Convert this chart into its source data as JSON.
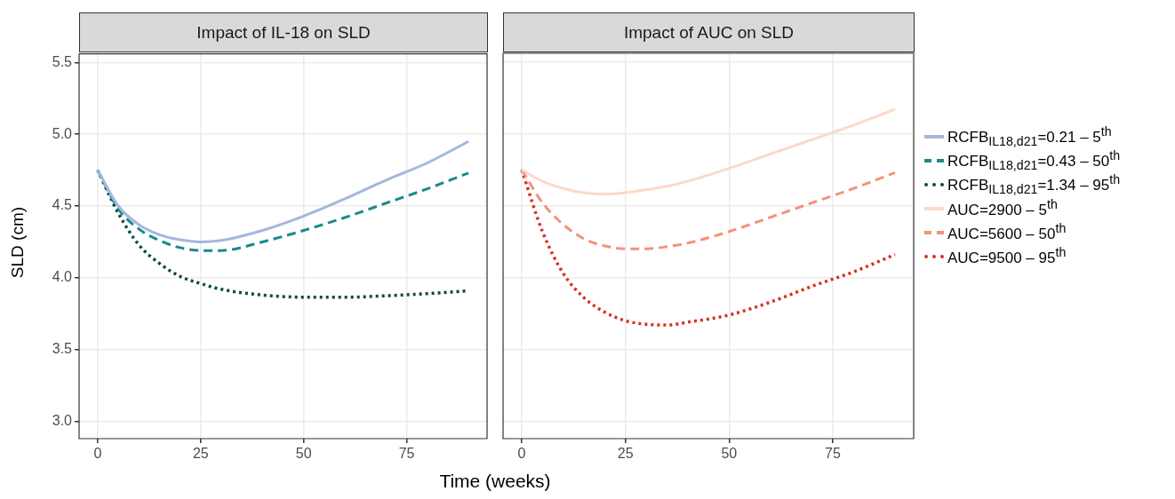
{
  "chart_data": [
    {
      "type": "line",
      "title": "Impact of IL-18 on SLD",
      "xlabel": "Time (weeks)",
      "ylabel": "SLD (cm)",
      "x": [
        0,
        5,
        10,
        15,
        20,
        25,
        30,
        40,
        50,
        60,
        70,
        80,
        90
      ],
      "series": [
        {
          "name": "RCFB$_{IL18,d21}$=0.21 – 5$^{th}$",
          "color": "#a4b8dc",
          "line_style": "solid",
          "values": [
            4.75,
            4.5,
            4.37,
            4.3,
            4.265,
            4.25,
            4.26,
            4.33,
            4.43,
            4.55,
            4.68,
            4.8,
            4.95
          ]
        },
        {
          "name": "RCFB$_{IL18,d21}$=0.43 – 50$^{th}$",
          "color": "#1a8a8a",
          "line_style": "dashed",
          "values": [
            4.75,
            4.48,
            4.34,
            4.26,
            4.21,
            4.19,
            4.19,
            4.25,
            4.33,
            4.42,
            4.52,
            4.62,
            4.73
          ]
        },
        {
          "name": "RCFB$_{IL18,d21}$=1.34 – 95$^{th}$",
          "color": "#0d4a3a",
          "line_style": "dotted",
          "values": [
            4.75,
            4.45,
            4.23,
            4.1,
            4.01,
            3.96,
            3.92,
            3.88,
            3.865,
            3.865,
            3.875,
            3.89,
            3.91
          ]
        }
      ],
      "xlim": [
        -4.5,
        94.5
      ],
      "xticks": [
        0,
        25,
        50,
        75
      ],
      "ylim": [
        2.88,
        5.56
      ],
      "yticks": [
        {
          "value": 3,
          "label": "3.0"
        },
        3.5,
        {
          "value": 4,
          "label": "4.0"
        },
        4.5,
        {
          "value": 5,
          "label": "5.0"
        },
        5.5
      ],
      "grid": true,
      "legend": "right",
      "marker": "none"
    },
    {
      "type": "line",
      "title": "Impact of AUC on SLD",
      "x": [
        0,
        5,
        10,
        15,
        20,
        25,
        30,
        35,
        40,
        50,
        60,
        70,
        80,
        90
      ],
      "series": [
        {
          "name": "AUC=2900 – 5$^{th}$",
          "color": "#fcd9c8",
          "line_style": "solid",
          "values": [
            4.75,
            4.67,
            4.62,
            4.59,
            4.58,
            4.59,
            4.61,
            4.635,
            4.67,
            4.76,
            4.86,
            4.96,
            5.06,
            5.17
          ]
        },
        {
          "name": "AUC=5600 – 50$^{th}$",
          "color": "#f4927a",
          "line_style": "dashed",
          "values": [
            4.75,
            4.52,
            4.37,
            4.27,
            4.22,
            4.2,
            4.2,
            4.215,
            4.24,
            4.32,
            4.42,
            4.52,
            4.62,
            4.73
          ]
        },
        {
          "name": "AUC=9500 – 95$^{th}$",
          "color": "#d7301f",
          "line_style": "dotted",
          "values": [
            4.75,
            4.32,
            4.03,
            3.86,
            3.76,
            3.7,
            3.675,
            3.67,
            3.69,
            3.74,
            3.83,
            3.94,
            4.04,
            4.16
          ]
        }
      ],
      "xlim": [
        -4.5,
        94.5
      ],
      "xticks": [
        0,
        25,
        50,
        75
      ],
      "ylim": [
        2.88,
        5.56
      ],
      "yticks": [
        3,
        3.5,
        4,
        4.5,
        5,
        5.5
      ],
      "grid": true,
      "legend": "right",
      "marker": "none",
      "tick_labels": "x"
    }
  ]
}
